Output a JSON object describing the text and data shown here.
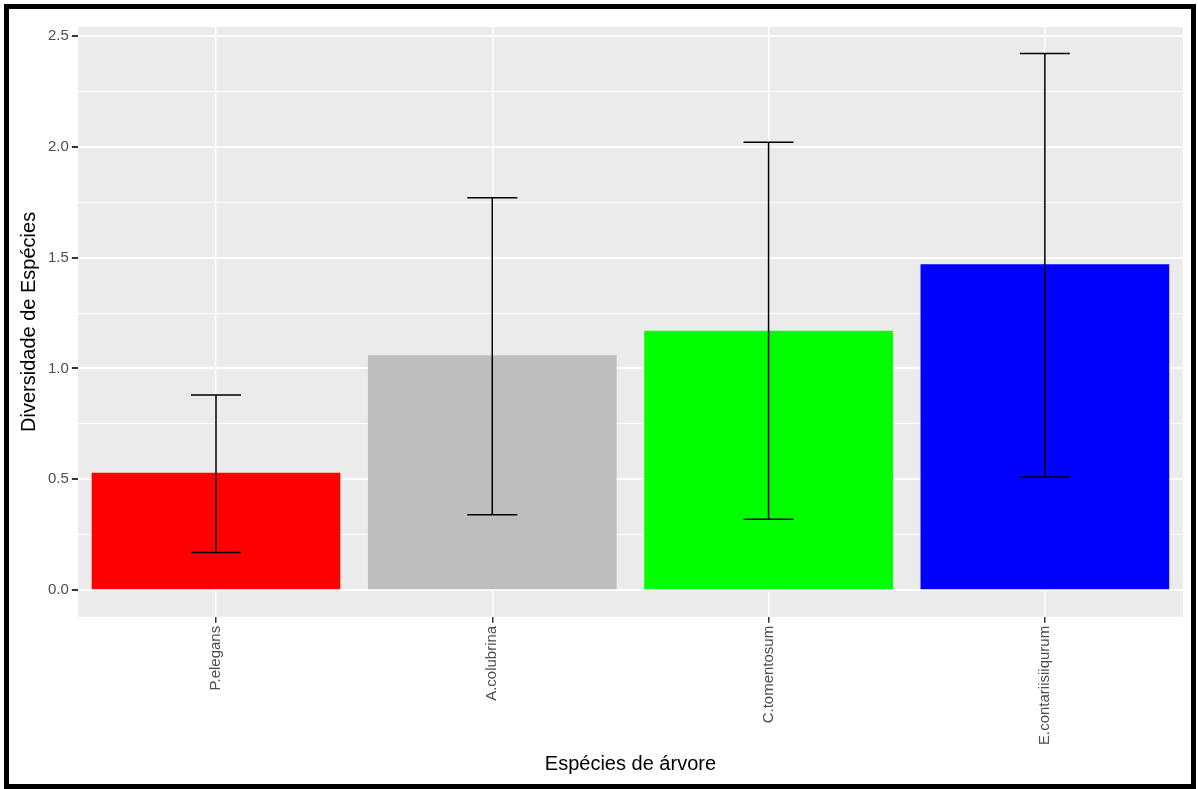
{
  "chart_data": {
    "type": "bar",
    "xlabel": "Espécies de árvore",
    "ylabel": "Diversidade de Espécies",
    "categories": [
      "P.elegans",
      "A.colubrina",
      "C.tomentosum",
      "E.contariisiiqurum"
    ],
    "values": [
      0.53,
      1.06,
      1.17,
      1.47
    ],
    "colors": [
      "#ff0000",
      "#bebebe",
      "#00ff00",
      "#0000ff"
    ],
    "errors": [
      [
        0.17,
        0.88
      ],
      [
        0.34,
        1.77
      ],
      [
        0.32,
        2.02
      ],
      [
        0.51,
        2.42
      ]
    ],
    "ylim": [
      -0.12,
      2.54
    ],
    "yticks": [
      {
        "value": 0,
        "label": "0.0"
      },
      {
        "value": 0.25,
        "label": null
      },
      0.5,
      {
        "value": 0.75,
        "label": null
      },
      {
        "value": 1,
        "label": "1.0"
      },
      {
        "value": 1.25,
        "label": null
      },
      1.5,
      {
        "value": 1.75,
        "label": null
      },
      {
        "value": 2,
        "label": "2.0"
      },
      {
        "value": 2.25,
        "label": null
      },
      2.5
    ],
    "grid": true,
    "legend": false
  }
}
